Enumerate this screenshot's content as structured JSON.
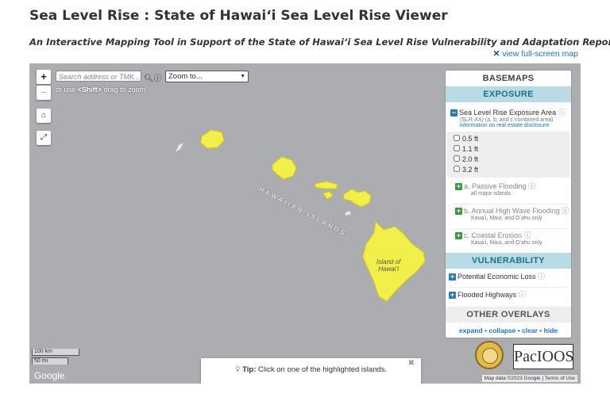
{
  "header": {
    "title": "Sea Level Rise : State of Hawaiʻi Sea Level Rise Viewer",
    "subtitle": "An Interactive Mapping Tool in Support of the State of Hawaiʻi Sea Level Rise Vulnerability and Adaptation Report",
    "fullscreen_link": "view full-screen map"
  },
  "map": {
    "search_placeholder": "Search address or TMK...",
    "zoom_select": "Zoom to...",
    "hint_prefix": "or use",
    "hint_key": "<Shift>",
    "hint_suffix": "drag to zoom",
    "chain_label": "HAWAIIAN ISLANDS",
    "island_label": [
      "Island of",
      "Hawaiʻi"
    ],
    "scale": [
      "100 km",
      "50 mi"
    ],
    "google": "Google",
    "tip_label": "Tip:",
    "tip_text": "Click on one of the highlighted islands.",
    "attribution": "Map data ©2023 Google",
    "terms": "Terms of Use"
  },
  "panel": {
    "basemaps": "BASEMAPS",
    "exposure": "EXPOSURE",
    "slr_title": "Sea Level Rise Exposure Area",
    "slr_sub": "(SLR-XA) (a, b, and c combined area)",
    "slr_link": "information on real estate disclosure",
    "options": [
      "0.5 ft",
      "1.1 ft",
      "2.0 ft",
      "3.2 ft"
    ],
    "layers": [
      {
        "title": "a. Passive Flooding",
        "sub": "all major islands"
      },
      {
        "title": "b. Annual High Wave Flooding",
        "sub": "Kauaʻi, Maui, and Oʻahu only"
      },
      {
        "title": "c. Coastal Erosion",
        "sub": "Kauaʻi, Maui, and Oʻahu only"
      }
    ],
    "vulnerability": "VULNERABILITY",
    "vuln_items": [
      "Potential Economic Loss",
      "Flooded Highways"
    ],
    "other_overlays": "OTHER OVERLAYS",
    "actions": [
      "expand",
      "collapse",
      "clear",
      "hide"
    ],
    "logo": "PacIOOS"
  }
}
